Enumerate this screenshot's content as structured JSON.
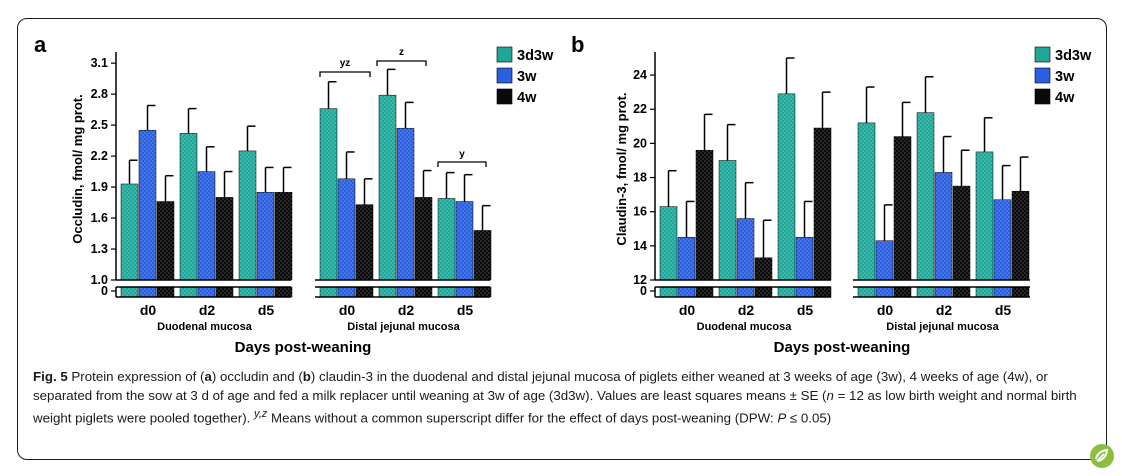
{
  "colors": {
    "teal": "#1fa89a",
    "blue": "#2b5fe0",
    "black": "#0a0a0a",
    "logo_green": "#8cbf3f"
  },
  "legend": [
    "3d3w",
    "3w",
    "4w"
  ],
  "chart_data": [
    {
      "type": "bar",
      "panel_label": "a",
      "ylabel": "Occludin, fmol/ mg prot.",
      "xlabel": "Days post-weaning",
      "yticks": [
        "0",
        "1.0",
        "1.3",
        "1.6",
        "1.9",
        "2.2",
        "2.5",
        "2.8",
        "3.1"
      ],
      "ylim_upper": [
        1.0,
        3.15
      ],
      "broken_axis": true,
      "groups": [
        "Duodenal mucosa",
        "Distal jejunal mucosa"
      ],
      "categories": [
        "d0",
        "d2",
        "d5",
        "d0",
        "d2",
        "d5"
      ],
      "series": [
        {
          "name": "3d3w",
          "values": [
            1.93,
            2.42,
            2.25,
            2.66,
            2.79,
            1.79
          ],
          "errors": [
            0.23,
            0.24,
            0.24,
            0.26,
            0.25,
            0.25
          ]
        },
        {
          "name": "3w",
          "values": [
            2.45,
            2.05,
            1.85,
            1.98,
            2.47,
            1.76
          ],
          "errors": [
            0.24,
            0.24,
            0.24,
            0.26,
            0.25,
            0.26
          ]
        },
        {
          "name": "4w",
          "values": [
            1.76,
            1.8,
            1.85,
            1.73,
            1.8,
            1.48
          ],
          "errors": [
            0.25,
            0.25,
            0.24,
            0.25,
            0.26,
            0.24
          ]
        }
      ],
      "annotations": [
        {
          "text": "yz",
          "cats": [
            3,
            3
          ]
        },
        {
          "text": "z",
          "cats": [
            4,
            4
          ]
        },
        {
          "text": "y",
          "cats": [
            5,
            5
          ]
        }
      ]
    },
    {
      "type": "bar",
      "panel_label": "b",
      "ylabel": "Claudin-3, fmol/ mg prot.",
      "xlabel": "Days post-weaning",
      "yticks": [
        "0",
        "12",
        "14",
        "16",
        "18",
        "20",
        "22",
        "24"
      ],
      "ylim_upper": [
        12,
        25
      ],
      "broken_axis": true,
      "groups": [
        "Duodenal mucosa",
        "Distal jejunal mucosa"
      ],
      "categories": [
        "d0",
        "d2",
        "d5",
        "d0",
        "d2",
        "d5"
      ],
      "series": [
        {
          "name": "3d3w",
          "values": [
            16.3,
            19.0,
            22.9,
            21.2,
            21.8,
            19.5
          ],
          "errors": [
            2.1,
            2.1,
            2.1,
            2.1,
            2.1,
            2.0
          ]
        },
        {
          "name": "3w",
          "values": [
            14.5,
            15.6,
            14.5,
            14.3,
            18.3,
            16.7
          ],
          "errors": [
            2.1,
            2.1,
            2.1,
            2.1,
            2.1,
            2.0
          ]
        },
        {
          "name": "4w",
          "values": [
            19.6,
            13.3,
            20.9,
            20.4,
            17.5,
            17.2
          ],
          "errors": [
            2.1,
            2.2,
            2.1,
            2.0,
            2.1,
            2.0
          ]
        }
      ],
      "annotations": []
    }
  ],
  "caption": {
    "fig": "Fig. 5",
    "p1": " Protein expression of (",
    "a": "a",
    "p2": ") occludin and (",
    "b": "b",
    "p3": ") claudin-3 in the duodenal and distal jejunal mucosa of piglets either weaned at 3 weeks of age (3w), 4 weeks of age (4w), or separated from the sow at 3 d of age and fed a milk replacer until weaning at 3w of age (3d3w). Values are least squares means ± SE (",
    "n": "n",
    "p4": " = 12 as low birth weight and normal birth weight piglets were pooled together). ",
    "sup": "y,z",
    "p5": " Means without a common superscript differ for the effect of days post-weaning (DPW: ",
    "P": "P",
    "p6": " ≤ 0.05)"
  }
}
